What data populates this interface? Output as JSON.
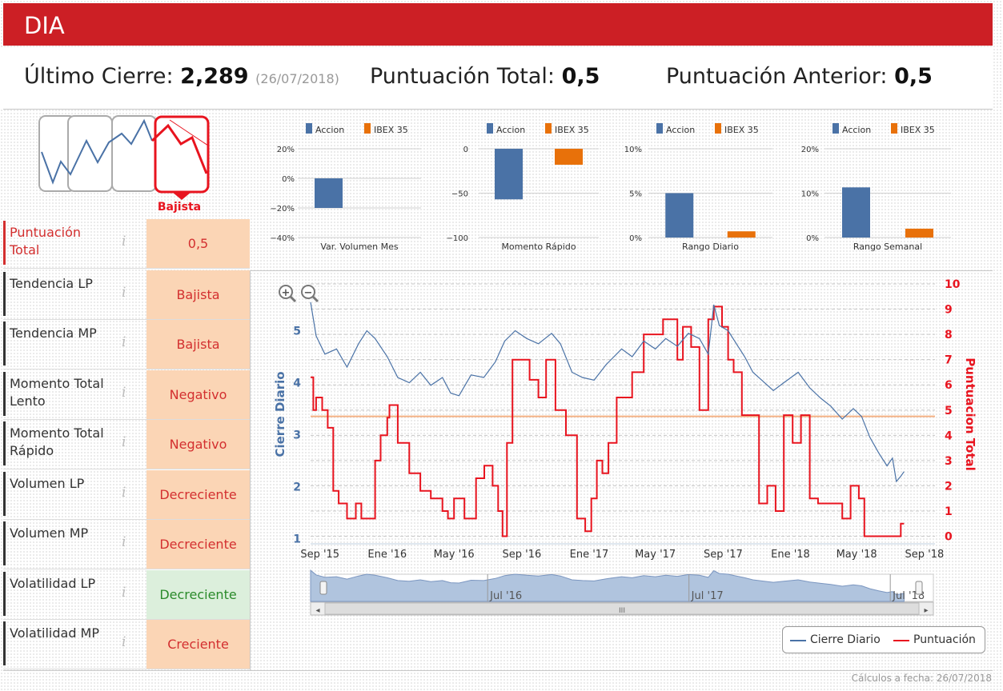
{
  "header": {
    "ticker": "DIA"
  },
  "summary": {
    "last_close_label": "Último Cierre:",
    "last_close_value": "2,289",
    "last_close_date": "(26/07/2018)",
    "total_score_label": "Puntuación Total:",
    "total_score_value": "0,5",
    "prev_score_label": "Puntuación Anterior:",
    "prev_score_value": "0,5"
  },
  "trend": {
    "label": "Bajista"
  },
  "indicators": [
    {
      "label": "Puntuación Total",
      "value": "0,5",
      "state": "neutral",
      "accent": "#d32f2f",
      "label_color": "#d32f2f"
    },
    {
      "label": "Tendencia LP",
      "value": "Bajista",
      "state": "neutral",
      "accent": "#333333",
      "label_color": "#333333"
    },
    {
      "label": "Tendencia MP",
      "value": "Bajista",
      "state": "neutral",
      "accent": "#333333",
      "label_color": "#333333"
    },
    {
      "label": "Momento Total Lento",
      "value": "Negativo",
      "state": "neutral",
      "accent": "#333333",
      "label_color": "#333333"
    },
    {
      "label": "Momento Total Rápido",
      "value": "Negativo",
      "state": "neutral",
      "accent": "#333333",
      "label_color": "#333333"
    },
    {
      "label": "Volumen LP",
      "value": "Decreciente",
      "state": "neutral",
      "accent": "#333333",
      "label_color": "#333333"
    },
    {
      "label": "Volumen MP",
      "value": "Decreciente",
      "state": "neutral",
      "accent": "#333333",
      "label_color": "#333333"
    },
    {
      "label": "Volatilidad LP",
      "value": "Decreciente",
      "state": "positive",
      "accent": "#333333",
      "label_color": "#333333"
    },
    {
      "label": "Volatilidad MP",
      "value": "Creciente",
      "state": "neutral",
      "accent": "#333333",
      "label_color": "#333333"
    }
  ],
  "info_glyph": "i",
  "colors": {
    "accion": "#4a72a6",
    "ibex": "#e8710a",
    "score": "#e8141f",
    "close": "#4a72a6",
    "threshold": "#f4b183",
    "brand": "#cc1f25"
  },
  "chart_data": [
    {
      "type": "bar",
      "title": "Var. Volumen Mes",
      "series_names": [
        "Accion",
        "IBEX 35"
      ],
      "values": [
        -20,
        null
      ],
      "ticks": [
        "20%",
        "0%",
        "−20%",
        "−40%"
      ],
      "tick_values": [
        20,
        0,
        -20,
        -40
      ],
      "ylim": [
        -40,
        20
      ]
    },
    {
      "type": "bar",
      "title": "Momento Rápido",
      "series_names": [
        "Accion",
        "IBEX 35"
      ],
      "values": [
        -57,
        -18
      ],
      "ticks": [
        "0",
        "−50",
        "−100"
      ],
      "tick_values": [
        0,
        -50,
        -100
      ],
      "ylim": [
        -100,
        0
      ]
    },
    {
      "type": "bar",
      "title": "Rango Diario",
      "series_names": [
        "Accion",
        "IBEX 35"
      ],
      "values": [
        5.0,
        0.7
      ],
      "ticks": [
        "10%",
        "5%",
        "0%"
      ],
      "tick_values": [
        10,
        5,
        0
      ],
      "ylim": [
        0,
        10
      ]
    },
    {
      "type": "bar",
      "title": "Rango Semanal",
      "series_names": [
        "Accion",
        "IBEX 35"
      ],
      "values": [
        11.3,
        2.0
      ],
      "ticks": [
        "20%",
        "10%",
        "0%"
      ],
      "tick_values": [
        20,
        10,
        0
      ],
      "ylim": [
        0,
        20
      ]
    },
    {
      "type": "line",
      "ylabel_left": "Cierre Diario",
      "ylabel_right": "Puntuacion Total",
      "ylim_left": [
        0.9,
        5.9
      ],
      "yticks_left": [
        1,
        2,
        3,
        4,
        5
      ],
      "ylim_right": [
        -0.3,
        10
      ],
      "yticks_right": [
        0,
        1,
        2,
        3,
        4,
        5,
        6,
        7,
        8,
        9,
        10
      ],
      "x_range": [
        "2015-08-15",
        "2018-09-20"
      ],
      "xticks": [
        {
          "date": "2015-09-01",
          "label": "Sep '15"
        },
        {
          "date": "2016-01-01",
          "label": "Ene '16"
        },
        {
          "date": "2016-05-01",
          "label": "May '16"
        },
        {
          "date": "2016-09-01",
          "label": "Sep '16"
        },
        {
          "date": "2017-01-01",
          "label": "Ene '17"
        },
        {
          "date": "2017-05-01",
          "label": "May '17"
        },
        {
          "date": "2017-09-01",
          "label": "Sep '17"
        },
        {
          "date": "2018-01-01",
          "label": "Ene '18"
        },
        {
          "date": "2018-05-01",
          "label": "May '18"
        },
        {
          "date": "2018-09-01",
          "label": "Sep '18"
        }
      ],
      "threshold": 4.75,
      "series": [
        {
          "name": "Cierre Diario",
          "axis": "left",
          "points": [
            [
              "2015-08-15",
              5.55
            ],
            [
              "2015-08-25",
              4.9
            ],
            [
              "2015-09-10",
              4.55
            ],
            [
              "2015-10-01",
              4.65
            ],
            [
              "2015-10-20",
              4.3
            ],
            [
              "2015-11-10",
              4.75
            ],
            [
              "2015-11-25",
              5.0
            ],
            [
              "2015-12-10",
              4.85
            ],
            [
              "2016-01-01",
              4.5
            ],
            [
              "2016-01-20",
              4.1
            ],
            [
              "2016-02-10",
              4.0
            ],
            [
              "2016-03-01",
              4.2
            ],
            [
              "2016-03-20",
              3.95
            ],
            [
              "2016-04-10",
              4.1
            ],
            [
              "2016-04-25",
              3.8
            ],
            [
              "2016-05-10",
              3.75
            ],
            [
              "2016-06-01",
              4.15
            ],
            [
              "2016-06-24",
              4.1
            ],
            [
              "2016-07-15",
              4.4
            ],
            [
              "2016-08-01",
              4.8
            ],
            [
              "2016-08-20",
              5.0
            ],
            [
              "2016-09-10",
              4.85
            ],
            [
              "2016-10-01",
              4.75
            ],
            [
              "2016-10-25",
              4.95
            ],
            [
              "2016-11-10",
              4.75
            ],
            [
              "2016-12-01",
              4.2
            ],
            [
              "2016-12-20",
              4.1
            ],
            [
              "2017-01-10",
              4.05
            ],
            [
              "2017-02-01",
              4.35
            ],
            [
              "2017-03-01",
              4.65
            ],
            [
              "2017-03-20",
              4.5
            ],
            [
              "2017-04-10",
              4.8
            ],
            [
              "2017-05-01",
              4.65
            ],
            [
              "2017-05-20",
              4.85
            ],
            [
              "2017-06-10",
              4.7
            ],
            [
              "2017-06-30",
              4.95
            ],
            [
              "2017-07-20",
              4.85
            ],
            [
              "2017-08-05",
              4.55
            ],
            [
              "2017-08-15",
              5.5
            ],
            [
              "2017-08-25",
              5.1
            ],
            [
              "2017-09-10",
              5.0
            ],
            [
              "2017-09-25",
              4.75
            ],
            [
              "2017-10-10",
              4.5
            ],
            [
              "2017-10-25",
              4.2
            ],
            [
              "2017-11-10",
              4.05
            ],
            [
              "2017-12-01",
              3.85
            ],
            [
              "2017-12-20",
              4.0
            ],
            [
              "2018-01-15",
              4.2
            ],
            [
              "2018-02-05",
              3.9
            ],
            [
              "2018-02-25",
              3.7
            ],
            [
              "2018-03-15",
              3.55
            ],
            [
              "2018-04-05",
              3.3
            ],
            [
              "2018-04-25",
              3.5
            ],
            [
              "2018-05-10",
              3.35
            ],
            [
              "2018-05-25",
              2.95
            ],
            [
              "2018-06-10",
              2.65
            ],
            [
              "2018-06-25",
              2.4
            ],
            [
              "2018-07-05",
              2.55
            ],
            [
              "2018-07-12",
              2.1
            ],
            [
              "2018-07-20",
              2.2
            ],
            [
              "2018-07-26",
              2.289
            ]
          ]
        },
        {
          "name": "Puntuación",
          "axis": "right",
          "points": [
            [
              "2015-08-15",
              6.3
            ],
            [
              "2015-08-20",
              5.0
            ],
            [
              "2015-08-25",
              5.5
            ],
            [
              "2015-09-05",
              5.0
            ],
            [
              "2015-09-15",
              4.3
            ],
            [
              "2015-09-25",
              1.8
            ],
            [
              "2015-10-05",
              1.3
            ],
            [
              "2015-10-20",
              0.7
            ],
            [
              "2015-11-05",
              1.3
            ],
            [
              "2015-11-15",
              0.7
            ],
            [
              "2015-12-10",
              3.0
            ],
            [
              "2015-12-20",
              4.0
            ],
            [
              "2016-01-01",
              4.7
            ],
            [
              "2016-01-05",
              5.2
            ],
            [
              "2016-01-20",
              3.7
            ],
            [
              "2016-02-10",
              2.5
            ],
            [
              "2016-03-01",
              1.8
            ],
            [
              "2016-03-20",
              1.5
            ],
            [
              "2016-04-10",
              1.0
            ],
            [
              "2016-04-20",
              0.7
            ],
            [
              "2016-05-01",
              1.5
            ],
            [
              "2016-05-20",
              0.7
            ],
            [
              "2016-06-10",
              2.3
            ],
            [
              "2016-06-25",
              2.8
            ],
            [
              "2016-07-10",
              2.0
            ],
            [
              "2016-07-20",
              1.0
            ],
            [
              "2016-07-28",
              0.0
            ],
            [
              "2016-08-05",
              3.7
            ],
            [
              "2016-08-15",
              7.0
            ],
            [
              "2016-09-15",
              6.2
            ],
            [
              "2016-10-01",
              5.5
            ],
            [
              "2016-10-15",
              7.0
            ],
            [
              "2016-11-01",
              5.0
            ],
            [
              "2016-11-20",
              4.0
            ],
            [
              "2016-12-10",
              0.7
            ],
            [
              "2016-12-25",
              0.2
            ],
            [
              "2017-01-05",
              1.5
            ],
            [
              "2017-01-15",
              3.0
            ],
            [
              "2017-01-25",
              2.5
            ],
            [
              "2017-02-05",
              3.7
            ],
            [
              "2017-02-20",
              5.5
            ],
            [
              "2017-03-20",
              6.5
            ],
            [
              "2017-04-10",
              8.0
            ],
            [
              "2017-05-15",
              8.6
            ],
            [
              "2017-06-10",
              7.0
            ],
            [
              "2017-06-20",
              8.3
            ],
            [
              "2017-07-05",
              7.5
            ],
            [
              "2017-07-20",
              5.0
            ],
            [
              "2017-08-05",
              8.6
            ],
            [
              "2017-08-15",
              9.1
            ],
            [
              "2017-08-30",
              8.3
            ],
            [
              "2017-09-10",
              7.0
            ],
            [
              "2017-09-20",
              6.5
            ],
            [
              "2017-10-05",
              4.8
            ],
            [
              "2017-10-20",
              4.8
            ],
            [
              "2017-11-05",
              1.3
            ],
            [
              "2017-11-20",
              2.0
            ],
            [
              "2017-12-05",
              1.0
            ],
            [
              "2017-12-20",
              4.8
            ],
            [
              "2018-01-05",
              3.7
            ],
            [
              "2018-01-20",
              4.8
            ],
            [
              "2018-02-05",
              1.5
            ],
            [
              "2018-02-20",
              1.3
            ],
            [
              "2018-04-05",
              0.7
            ],
            [
              "2018-04-20",
              2.0
            ],
            [
              "2018-05-05",
              1.5
            ],
            [
              "2018-05-15",
              0.0
            ],
            [
              "2018-07-20",
              0.5
            ],
            [
              "2018-07-26",
              0.5
            ]
          ]
        }
      ]
    }
  ],
  "navigator": {
    "labels": [
      "Jul '16",
      "Jul '17",
      "Jul '18"
    ],
    "scroll_label": "III"
  },
  "legend": {
    "close": "Cierre Diario",
    "score": "Puntuación"
  },
  "footer": {
    "text": "Cálculos a fecha: 26/07/2018"
  }
}
